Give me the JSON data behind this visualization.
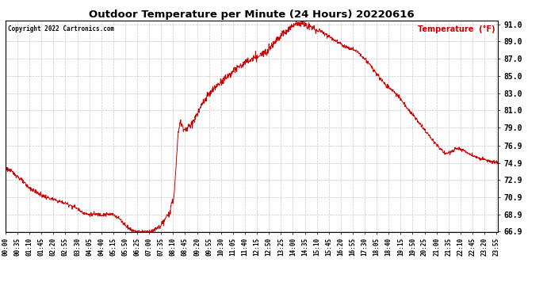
{
  "title": "Outdoor Temperature per Minute (24 Hours) 20220616",
  "copyright_text": "Copyright 2022 Cartronics.com",
  "legend_label": "Temperature  (°F)",
  "line_color": "#cc0000",
  "background_color": "#ffffff",
  "grid_color": "#c8c8c8",
  "ylim": [
    66.9,
    91.4
  ],
  "yticks": [
    66.9,
    68.9,
    70.9,
    72.9,
    74.9,
    76.9,
    79.0,
    81.0,
    83.0,
    85.0,
    87.0,
    89.0,
    91.0
  ],
  "x_tick_labels": [
    "00:00",
    "00:35",
    "01:10",
    "01:45",
    "02:20",
    "02:55",
    "03:30",
    "04:05",
    "04:40",
    "05:15",
    "05:50",
    "06:25",
    "07:00",
    "07:35",
    "08:10",
    "08:45",
    "09:20",
    "09:55",
    "10:30",
    "11:05",
    "11:40",
    "12:15",
    "12:50",
    "13:25",
    "14:00",
    "14:35",
    "15:10",
    "15:45",
    "16:20",
    "16:55",
    "17:30",
    "18:05",
    "18:40",
    "19:15",
    "19:50",
    "20:25",
    "21:00",
    "21:35",
    "22:10",
    "22:45",
    "23:20",
    "23:55"
  ],
  "key_points_minutes": [
    0,
    30,
    70,
    120,
    150,
    175,
    200,
    245,
    270,
    310,
    375,
    395,
    420,
    450,
    490,
    510,
    525,
    540,
    560,
    580,
    610,
    650,
    700,
    750,
    800,
    840,
    855,
    870,
    885,
    900,
    920,
    950,
    990,
    1020,
    1050,
    1080,
    1110,
    1140,
    1170,
    1200,
    1230,
    1260,
    1290,
    1320,
    1380,
    1435
  ],
  "key_temps": [
    74.3,
    73.5,
    72.0,
    70.9,
    70.5,
    70.2,
    69.8,
    68.9,
    68.9,
    68.9,
    67.0,
    66.9,
    66.9,
    67.5,
    70.5,
    79.5,
    78.8,
    79.2,
    80.5,
    82.0,
    83.5,
    85.0,
    86.5,
    87.5,
    89.5,
    90.8,
    91.2,
    91.0,
    90.8,
    90.5,
    90.2,
    89.5,
    88.5,
    88.0,
    87.0,
    85.5,
    84.0,
    83.0,
    81.5,
    80.0,
    78.5,
    77.0,
    76.0,
    76.5,
    75.5,
    74.9
  ]
}
